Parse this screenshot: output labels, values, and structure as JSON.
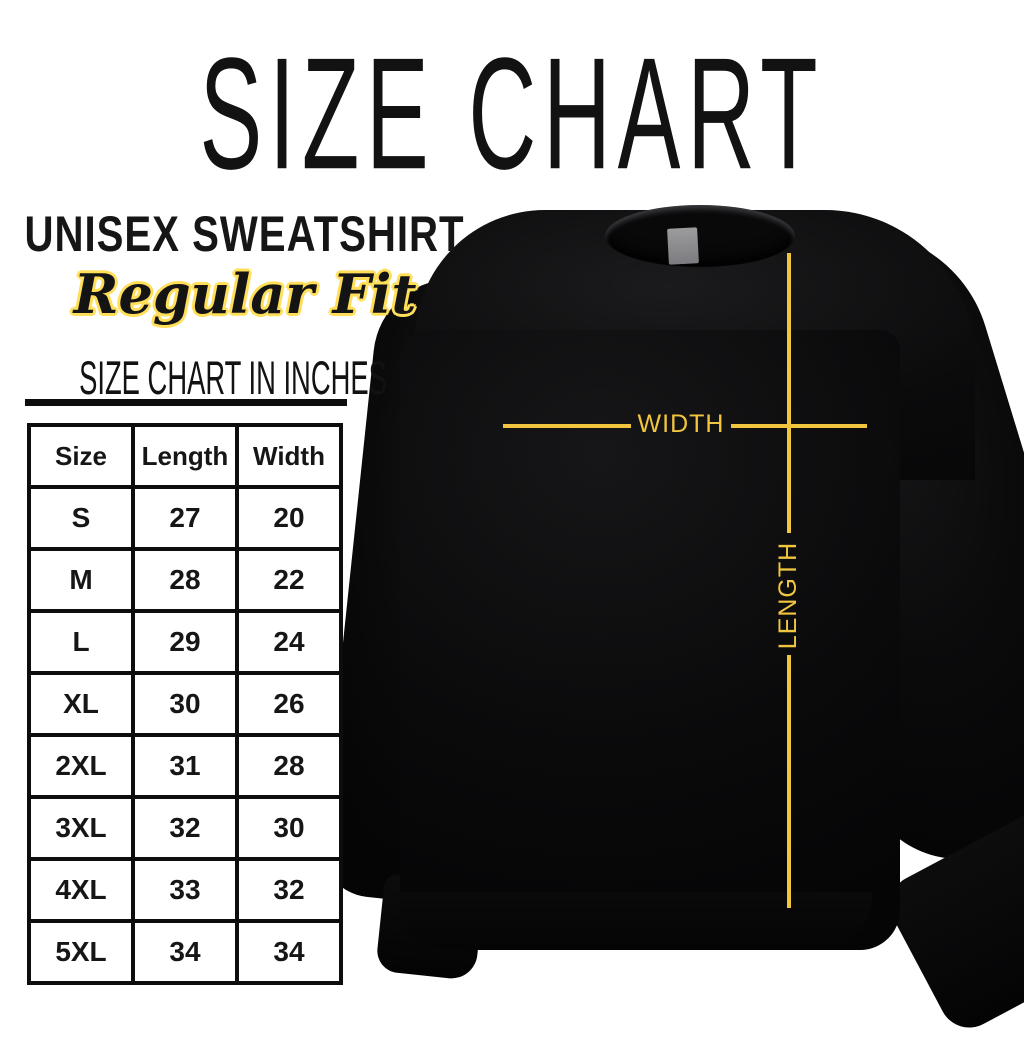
{
  "title": "SIZE CHART",
  "product": {
    "name": "UNISEX SWEATSHIRT",
    "fit": "Regular Fit"
  },
  "size_table": {
    "heading": "SIZE CHART IN INCHES",
    "columns": [
      "Size",
      "Length",
      "Width"
    ]
  },
  "chart_data": {
    "type": "table",
    "title": "SIZE CHART IN INCHES",
    "columns": [
      "Size",
      "Length",
      "Width"
    ],
    "rows": [
      [
        "S",
        "27",
        "20"
      ],
      [
        "M",
        "28",
        "22"
      ],
      [
        "L",
        "29",
        "24"
      ],
      [
        "XL",
        "30",
        "26"
      ],
      [
        "2XL",
        "31",
        "28"
      ],
      [
        "3XL",
        "32",
        "30"
      ],
      [
        "4XL",
        "33",
        "32"
      ],
      [
        "5XL",
        "34",
        "34"
      ]
    ],
    "units": "inches"
  },
  "diagram": {
    "width_label": "WIDTH",
    "length_label": "LENGTH"
  },
  "colors": {
    "accent_yellow": "#F2C53F",
    "outline_yellow": "#FFDE59",
    "garment_black": "#0B0B0C"
  }
}
